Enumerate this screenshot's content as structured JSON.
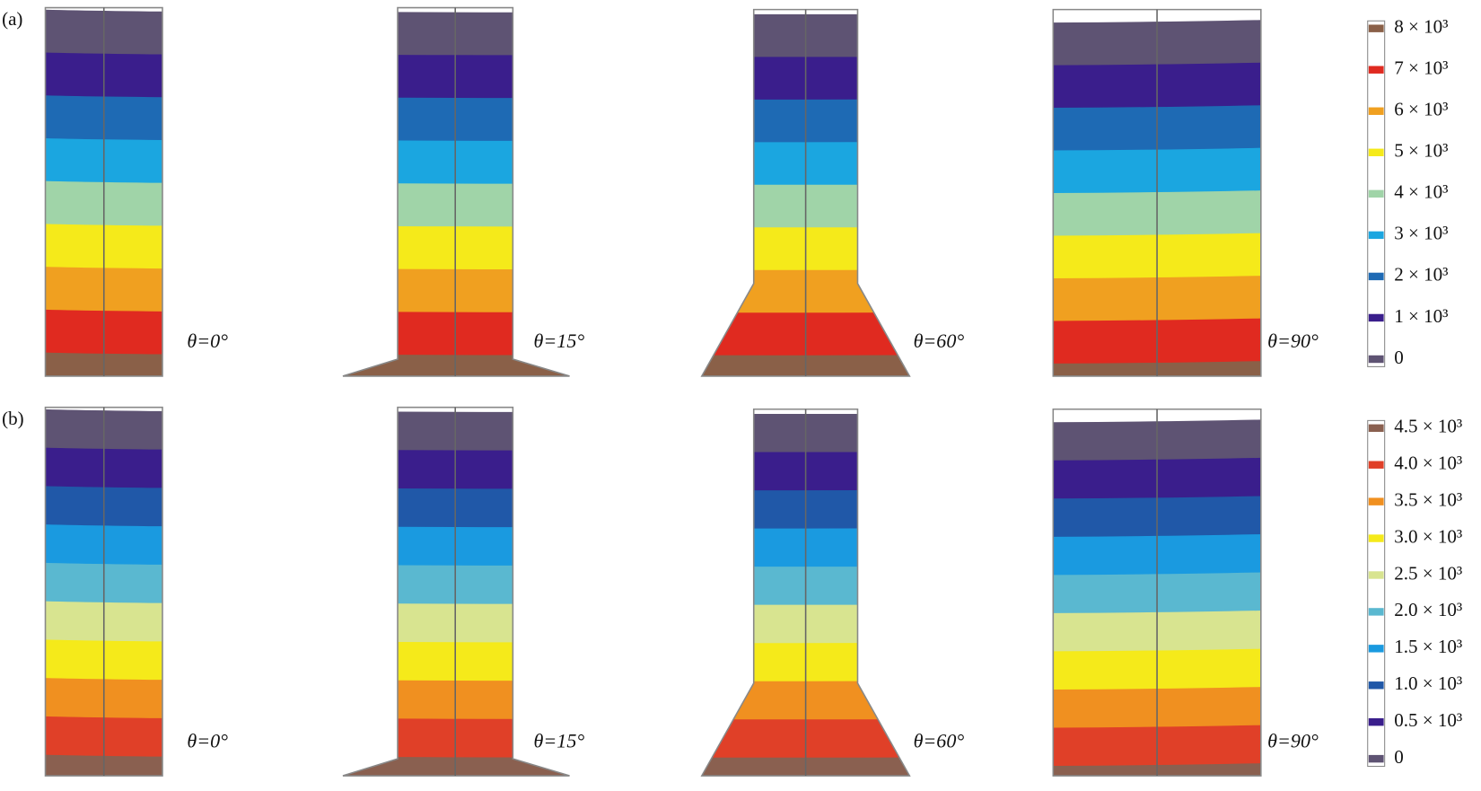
{
  "panels": [
    {
      "label": "(a)",
      "plots": [
        {
          "angle_label": "θ=0°"
        },
        {
          "angle_label": "θ=15°"
        },
        {
          "angle_label": "θ=60°"
        },
        {
          "angle_label": "θ=90°"
        }
      ],
      "colorbar": {
        "ticks": [
          "8 × 10³",
          "7 × 10³",
          "6 × 10³",
          "5 × 10³",
          "4 × 10³",
          "3 × 10³",
          "2 × 10³",
          "1 × 10³",
          "0"
        ],
        "colors": [
          "#8a6048",
          "#e02a20",
          "#f0a020",
          "#f5ea1a",
          "#a0d4a8",
          "#1ba6e0",
          "#1e6ab4",
          "#3a1e8c",
          "#5e5373"
        ]
      }
    },
    {
      "label": "(b)",
      "plots": [
        {
          "angle_label": "θ=0°"
        },
        {
          "angle_label": "θ=15°"
        },
        {
          "angle_label": "θ=60°"
        },
        {
          "angle_label": "θ=90°"
        }
      ],
      "colorbar": {
        "ticks": [
          "4.5 × 10³",
          "4.0 × 10³",
          "3.5 × 10³",
          "3.0 × 10³",
          "2.5 × 10³",
          "2.0 × 10³",
          "1.5 × 10³",
          "1.0 × 10³",
          "0.5 × 10³",
          "0"
        ],
        "colors": [
          "#8a6050",
          "#e04028",
          "#f09020",
          "#f5ea1a",
          "#d8e490",
          "#5ab8d0",
          "#1a9ae0",
          "#2058a8",
          "#3a1e8c",
          "#5e5373"
        ]
      }
    }
  ]
}
